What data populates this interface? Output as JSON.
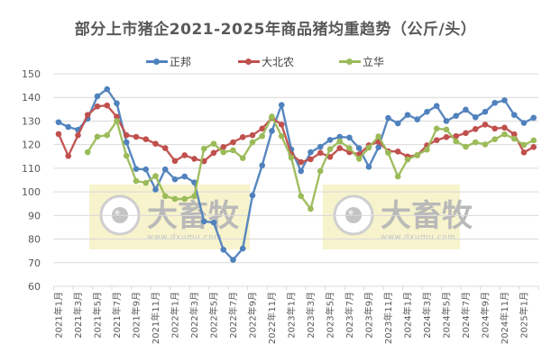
{
  "chart_data": {
    "type": "line",
    "title": "部分上市猪企2021-2025年商品猪均重趋势（公斤/头）",
    "xlabel": "",
    "ylabel": "",
    "ylim": [
      60,
      150
    ],
    "ytick_step": 10,
    "yticks": [
      60,
      70,
      80,
      90,
      100,
      110,
      120,
      130,
      140,
      150
    ],
    "grid": true,
    "legend_position": "top",
    "x": [
      "2021年1月",
      "2021年2月",
      "2021年3月",
      "2021年4月",
      "2021年5月",
      "2021年6月",
      "2021年7月",
      "2021年8月",
      "2021年9月",
      "2021年10月",
      "2021年11月",
      "2021年12月",
      "2022年1月",
      "2022年2月",
      "2022年3月",
      "2022年4月",
      "2022年5月",
      "2022年6月",
      "2022年7月",
      "2022年8月",
      "2022年9月",
      "2022年10月",
      "2022年11月",
      "2022年12月",
      "2023年1月",
      "2023年2月",
      "2023年3月",
      "2023年4月",
      "2023年5月",
      "2023年6月",
      "2023年7月",
      "2023年8月",
      "2023年9月",
      "2023年10月",
      "2023年11月",
      "2023年12月",
      "2024年1月",
      "2024年2月",
      "2024年3月",
      "2024年4月",
      "2024年5月",
      "2024年6月",
      "2024年7月",
      "2024年8月",
      "2024年9月",
      "2024年10月",
      "2024年11月",
      "2024年12月",
      "2025年1月",
      "2025年2月"
    ],
    "xtick_labels": [
      "2021年1月",
      "2021年3月",
      "2021年5月",
      "2021年7月",
      "2021年9月",
      "2021年11月",
      "2022年1月",
      "2022年3月",
      "2022年5月",
      "2022年7月",
      "2022年9月",
      "2022年11月",
      "2023年1月",
      "2023年3月",
      "2023年5月",
      "2023年7月",
      "2023年9月",
      "2023年11月",
      "2024年1月",
      "2024年3月",
      "2024年5月",
      "2024年7月",
      "2024年9月",
      "2024年11月",
      "2025年1月"
    ],
    "series": [
      {
        "name": "正邦",
        "color": "#4f81bd",
        "values": [
          129.5,
          127.5,
          126.3,
          131,
          140.5,
          143.5,
          137.5,
          121,
          109.7,
          109.5,
          101,
          109.5,
          105.3,
          106.5,
          104,
          87.5,
          87,
          75.5,
          71.2,
          76,
          98.5,
          111.2,
          125.8,
          136.8,
          118,
          108.8,
          116.8,
          119.1,
          122,
          123.3,
          123,
          118.5,
          110.6,
          118.9,
          131.3,
          129,
          132.6,
          130.7,
          133.9,
          136.4,
          130,
          132.2,
          134.8,
          131.6,
          133.9,
          137.7,
          138.8,
          132.6,
          129.2,
          131.4
        ]
      },
      {
        "name": "大北农",
        "color": "#c0504d",
        "values": [
          124.5,
          115.2,
          124,
          132.6,
          136.2,
          136.6,
          131.8,
          124,
          123.3,
          122.3,
          120.4,
          118.5,
          113.1,
          115.5,
          114,
          113,
          116.5,
          119,
          121,
          123.2,
          124,
          126.8,
          131.3,
          128.5,
          115.9,
          112.6,
          113.8,
          116.5,
          114.8,
          118.5,
          116.8,
          115.9,
          119.7,
          121.2,
          117.2,
          117.1,
          115,
          115.5,
          119.7,
          121.9,
          123.2,
          123.6,
          124.9,
          126.6,
          128.5,
          126.8,
          127.2,
          124.4,
          116.7,
          119
        ]
      },
      {
        "name": "立华",
        "color": "#9bbb59",
        "values": [
          null,
          null,
          null,
          116.8,
          123.4,
          124,
          130,
          115.3,
          104.6,
          103.8,
          106.7,
          98.2,
          97,
          97,
          98.2,
          118.3,
          120.4,
          116.8,
          117.6,
          114.3,
          121,
          123.6,
          131.9,
          123.6,
          114.5,
          98.2,
          92.8,
          108.8,
          118.1,
          121.4,
          118.5,
          114,
          118.7,
          123.5,
          116.5,
          106.5,
          113.7,
          115.6,
          117.9,
          126.8,
          126.4,
          121.4,
          119.1,
          121,
          120.1,
          122.3,
          124.4,
          122.5,
          119.9,
          121.8
        ]
      }
    ]
  },
  "legend": [
    {
      "name": "正邦",
      "color": "#4f81bd"
    },
    {
      "name": "大北农",
      "color": "#c0504d"
    },
    {
      "name": "立华",
      "color": "#9bbb59"
    }
  ],
  "watermark": {
    "brand": "大畜牧",
    "url": "www.dxumu.com"
  }
}
